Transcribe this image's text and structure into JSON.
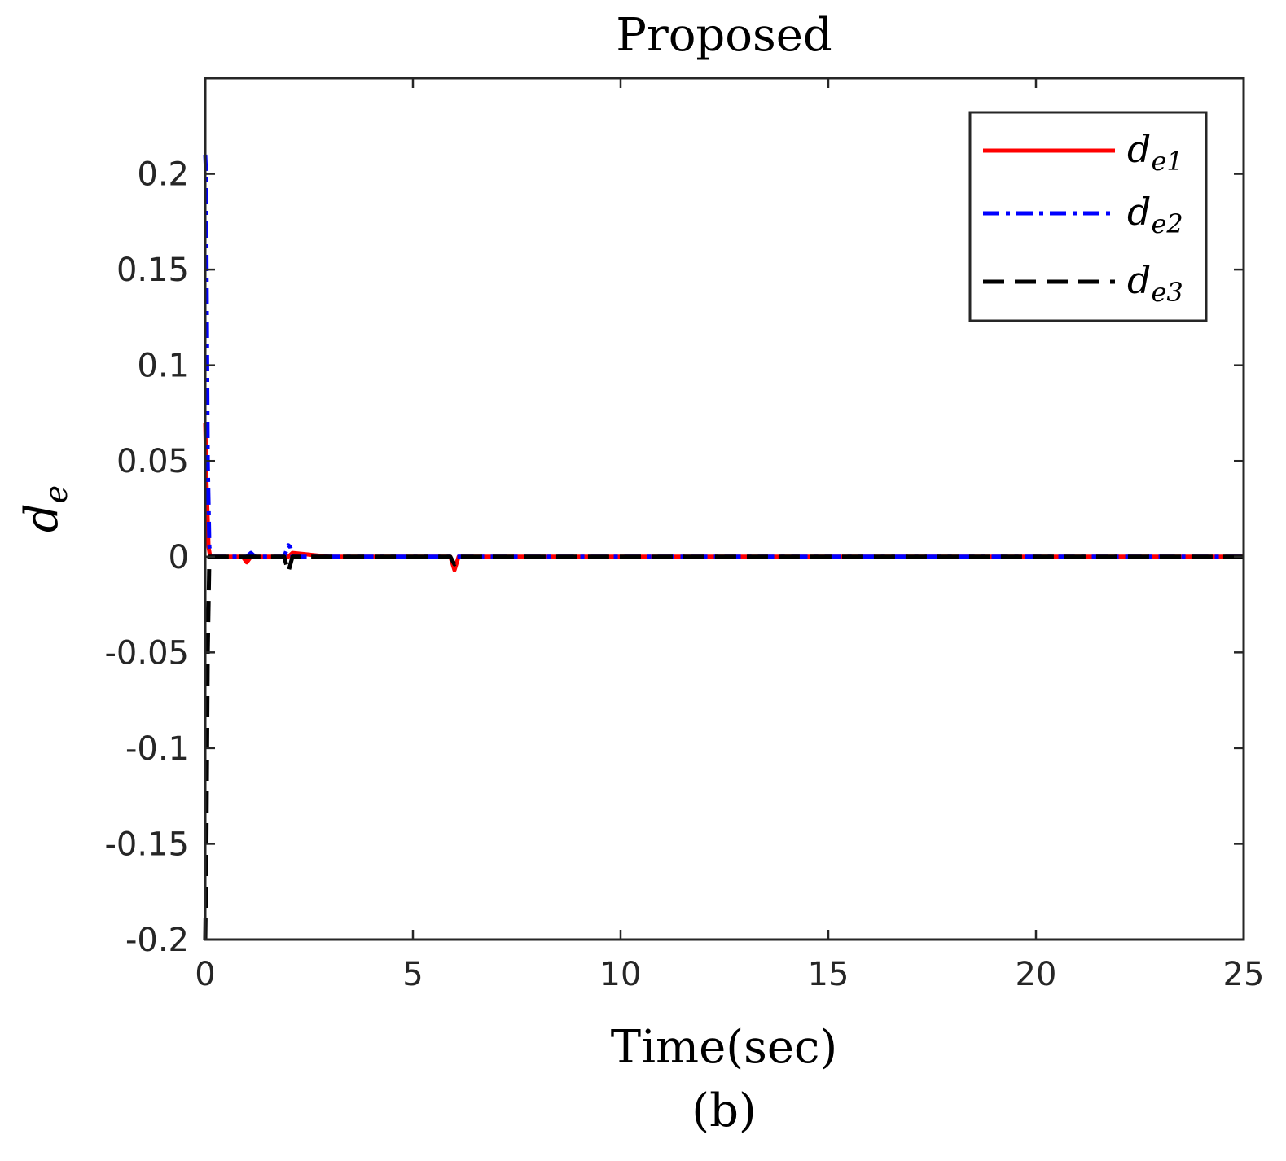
{
  "chart_data": {
    "type": "line",
    "title": "Proposed",
    "xlabel": "Time(sec)",
    "ylabel": {
      "base": "d",
      "sub": "e"
    },
    "caption": "(b)",
    "xlim": [
      0,
      25
    ],
    "ylim": [
      -0.2,
      0.25
    ],
    "xticks": [
      0,
      5,
      10,
      15,
      20,
      25
    ],
    "xtick_labels": [
      "0",
      "5",
      "10",
      "15",
      "20",
      "25"
    ],
    "yticks": [
      -0.2,
      -0.15,
      -0.1,
      -0.05,
      0,
      0.05,
      0.1,
      0.15,
      0.2
    ],
    "ytick_labels": [
      "-0.2",
      "-0.15",
      "-0.1",
      "-0.05",
      "0",
      "0.05",
      "0.1",
      "0.15",
      "0.2"
    ],
    "grid": false,
    "legend_position": "top-right",
    "series": [
      {
        "name": "d_e1",
        "legend_base": "d",
        "legend_sub": "e1",
        "color": "#ff0000",
        "style": "solid",
        "x": [
          0,
          0.03,
          0.08,
          0.12,
          0.5,
          0.9,
          1.0,
          1.1,
          1.3,
          2.0,
          2.1,
          3,
          5,
          5.9,
          6.0,
          6.1,
          8,
          12,
          25
        ],
        "y": [
          0.07,
          0.04,
          0.005,
          0.0,
          0.0,
          0.0,
          -0.003,
          0.0,
          0.0,
          0.0,
          0.002,
          0.0,
          0.0,
          0.0,
          -0.007,
          0.0,
          0.0,
          0.0,
          0.0
        ]
      },
      {
        "name": "d_e2",
        "legend_base": "d",
        "legend_sub": "e2",
        "color": "#0000ff",
        "style": "dashdot",
        "x": [
          0,
          0.02,
          0.06,
          0.1,
          0.15,
          0.5,
          1.0,
          1.1,
          1.2,
          1.9,
          2.0,
          2.05,
          2.1,
          3,
          6,
          12,
          25
        ],
        "y": [
          0.21,
          0.2,
          0.05,
          0.005,
          0.0,
          0.0,
          0.0,
          0.002,
          0.0,
          0.0,
          0.006,
          0.005,
          0.0,
          0.0,
          0.0,
          0.0,
          0.0
        ]
      },
      {
        "name": "d_e3",
        "legend_base": "d",
        "legend_sub": "e3",
        "color": "#000000",
        "style": "dashed",
        "x": [
          0,
          0.03,
          0.06,
          0.1,
          0.5,
          1.9,
          2.0,
          2.1,
          3,
          5.9,
          6.0,
          6.1,
          12,
          25
        ],
        "y": [
          -0.2,
          -0.15,
          -0.05,
          0.0,
          0.0,
          0.0,
          -0.008,
          0.0,
          0.0,
          0.0,
          -0.004,
          0.0,
          0.0,
          0.0
        ]
      }
    ]
  }
}
